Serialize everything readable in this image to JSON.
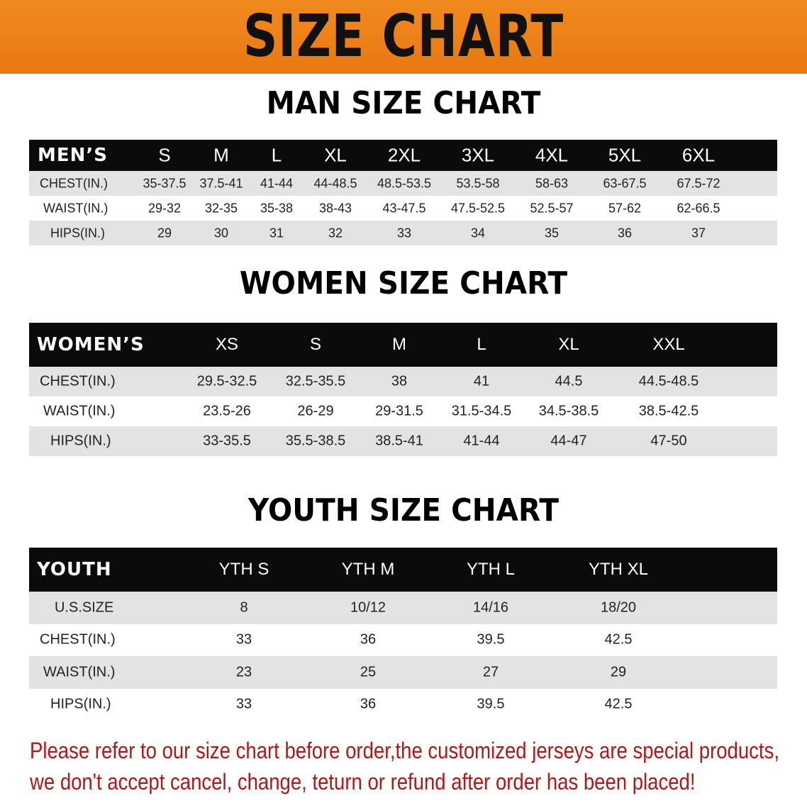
{
  "banner": {
    "title": "SIZE CHART",
    "color": "#ee8219"
  },
  "men": {
    "title": "MAN SIZE CHART",
    "header_label": "MEN’S",
    "sizes": [
      "S",
      "M",
      "L",
      "XL",
      "2XL",
      "3XL",
      "4XL",
      "5XL",
      "6XL"
    ],
    "rows": [
      {
        "label": "CHEST(IN.)",
        "values": [
          "35-37.5",
          "37.5-41",
          "41-44",
          "44-48.5",
          "48.5-53.5",
          "53.5-58",
          "58-63",
          "63-67.5",
          "67.5-72"
        ]
      },
      {
        "label": "WAIST(IN.)",
        "values": [
          "29-32",
          "32-35",
          "35-38",
          "38-43",
          "43-47.5",
          "47.5-52.5",
          "52.5-57",
          "57-62",
          "62-66.5"
        ]
      },
      {
        "label": "HIPS(IN.)",
        "values": [
          "29",
          "30",
          "31",
          "32",
          "33",
          "34",
          "35",
          "36",
          "37"
        ]
      }
    ]
  },
  "women": {
    "title": "WOMEN SIZE CHART",
    "header_label": "WOMEN’S",
    "sizes": [
      "XS",
      "S",
      "M",
      "L",
      "XL",
      "XXL"
    ],
    "rows": [
      {
        "label": "CHEST(IN.)",
        "values": [
          "29.5-32.5",
          "32.5-35.5",
          "38",
          "41",
          "44.5",
          "44.5-48.5"
        ]
      },
      {
        "label": "WAIST(IN.)",
        "values": [
          "23.5-26",
          "26-29",
          "29-31.5",
          "31.5-34.5",
          "34.5-38.5",
          "38.5-42.5"
        ]
      },
      {
        "label": "HIPS(IN.)",
        "values": [
          "33-35.5",
          "35.5-38.5",
          "38.5-41",
          "41-44",
          "44-47",
          "47-50"
        ]
      }
    ]
  },
  "youth": {
    "title": "YOUTH SIZE CHART",
    "header_label": "YOUTH",
    "sizes": [
      "YTH S",
      "YTH M",
      "YTH L",
      "YTH XL"
    ],
    "rows": [
      {
        "label": "U.S.SIZE",
        "values": [
          "8",
          "10/12",
          "14/16",
          "18/20"
        ]
      },
      {
        "label": "CHEST(IN.)",
        "values": [
          "33",
          "36",
          "39.5",
          "42.5"
        ]
      },
      {
        "label": "WAIST(IN.)",
        "values": [
          "23",
          "25",
          "27",
          "29"
        ]
      },
      {
        "label": "HIPS(IN.)",
        "values": [
          "33",
          "36",
          "39.5",
          "42.5"
        ]
      }
    ]
  },
  "notice": {
    "line1": "Please refer to our size chart before order,the customized jerseys are special products,",
    "line2": "we don't accept cancel, change, teturn or refund after order has been placed!",
    "color": "#b01818"
  }
}
